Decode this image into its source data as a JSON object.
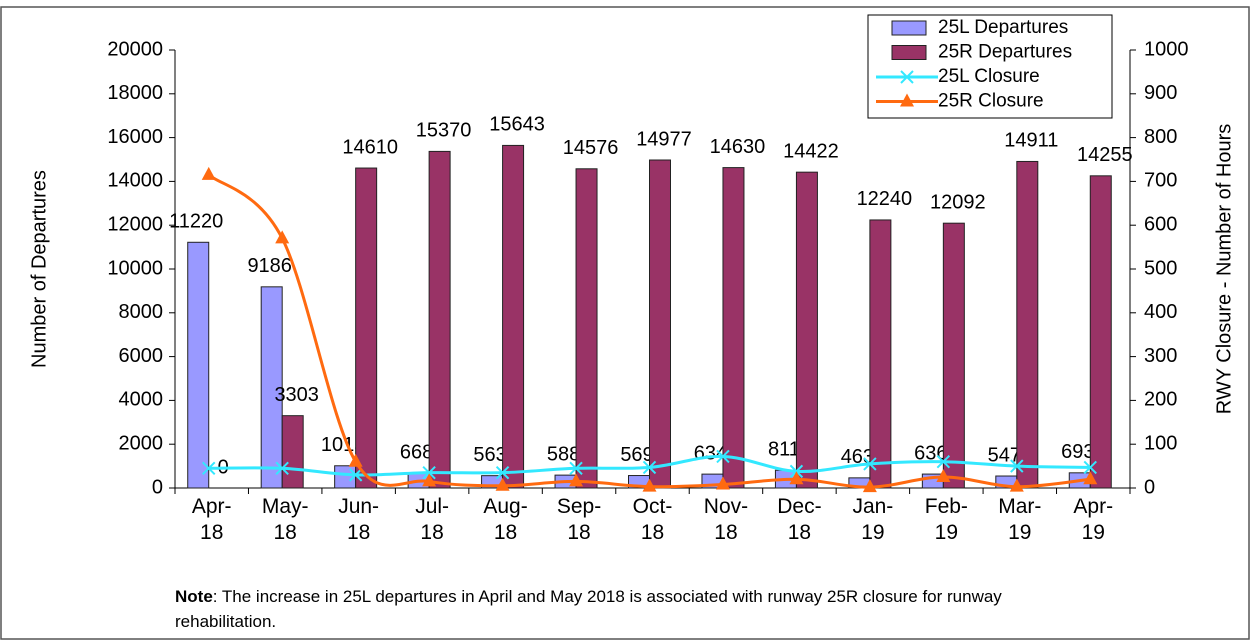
{
  "chart_data": {
    "type": "bar_line",
    "categories": [
      "Apr-18",
      "May-18",
      "Jun-18",
      "Jul-18",
      "Aug-18",
      "Sep-18",
      "Oct-18",
      "Nov-18",
      "Dec-18",
      "Jan-19",
      "Feb-19",
      "Mar-19",
      "Apr-19"
    ],
    "y_label": "Number of Departures",
    "y2_label": "RWY Closure - Number of Hours",
    "ylim": [
      0,
      20000
    ],
    "yticks": [
      0,
      2000,
      4000,
      6000,
      8000,
      10000,
      12000,
      14000,
      16000,
      18000,
      20000
    ],
    "y2lim": [
      0,
      1000
    ],
    "y2ticks": [
      0,
      100,
      200,
      300,
      400,
      500,
      600,
      700,
      800,
      900,
      1000
    ],
    "legend": "upper right",
    "series": [
      {
        "name": "25L Departures",
        "type": "bar",
        "color": "#9999ff",
        "values": [
          11220,
          9186,
          1015,
          668,
          563,
          588,
          569,
          634,
          811,
          463,
          636,
          547,
          693
        ]
      },
      {
        "name": "25R Departures",
        "type": "bar",
        "color": "#993366",
        "values": [
          0,
          3303,
          14610,
          15370,
          15643,
          14576,
          14977,
          14630,
          14422,
          12240,
          12092,
          14911,
          14255
        ]
      },
      {
        "name": "25L Closure",
        "type": "line",
        "axis": "y2",
        "marker": "x",
        "color": "#33e8ff",
        "values": [
          45,
          45,
          30,
          35,
          35,
          45,
          47,
          72,
          38,
          55,
          60,
          50,
          47
        ]
      },
      {
        "name": "25R Closure",
        "type": "line",
        "axis": "y2",
        "marker": "triangle",
        "color": "#ff6a10",
        "values": [
          715,
          570,
          60,
          15,
          5,
          15,
          3,
          8,
          20,
          2,
          25,
          3,
          20
        ]
      }
    ],
    "note": {
      "label": "Note",
      "text": ": The increase in 25L departures in April and May 2018 is associated with runway 25R closure for runway rehabilitation."
    }
  }
}
